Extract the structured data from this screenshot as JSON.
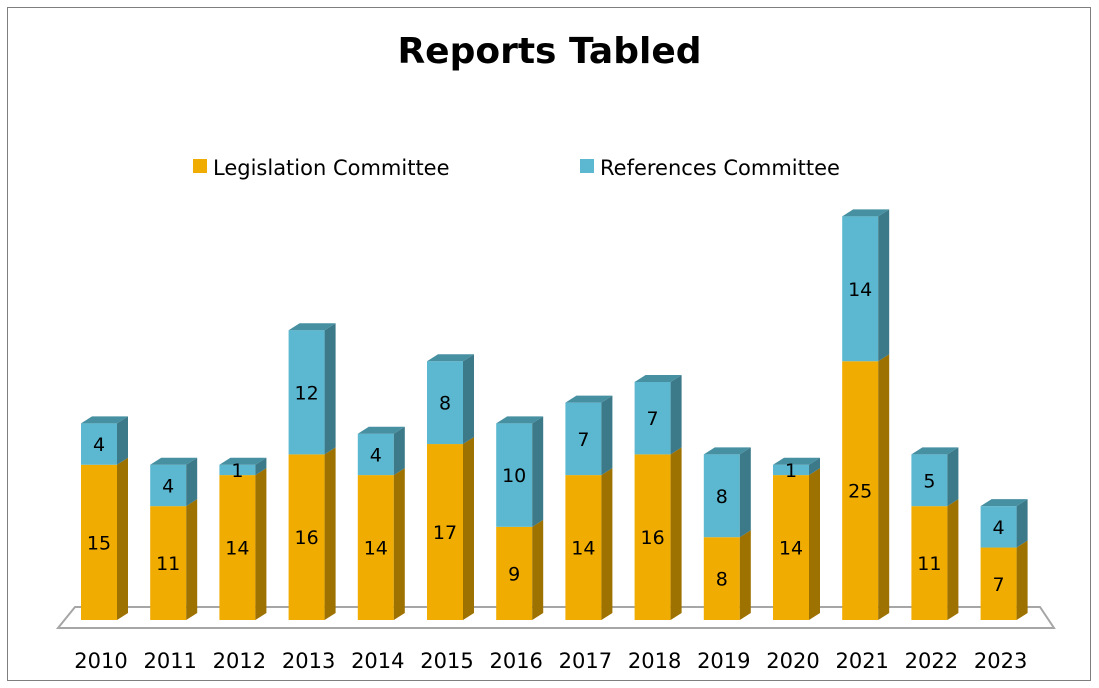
{
  "chart_data": {
    "type": "bar",
    "stacked": true,
    "three_d": true,
    "title": "Reports Tabled",
    "xlabel": "",
    "ylabel": "",
    "ylim": [
      0,
      39
    ],
    "grid": false,
    "legend_position": "top",
    "categories": [
      "2010",
      "2011",
      "2012",
      "2013",
      "2014",
      "2015",
      "2016",
      "2017",
      "2018",
      "2019",
      "2020",
      "2021",
      "2022",
      "2023"
    ],
    "series": [
      {
        "name": "Legislation Committee",
        "color": "#f0ac00",
        "values": [
          15,
          11,
          14,
          16,
          14,
          17,
          9,
          14,
          16,
          8,
          14,
          25,
          11,
          7
        ]
      },
      {
        "name": "References Committee",
        "color": "#5bb8d0",
        "values": [
          4,
          4,
          1,
          12,
          4,
          8,
          10,
          7,
          7,
          8,
          1,
          14,
          5,
          4
        ]
      }
    ]
  }
}
